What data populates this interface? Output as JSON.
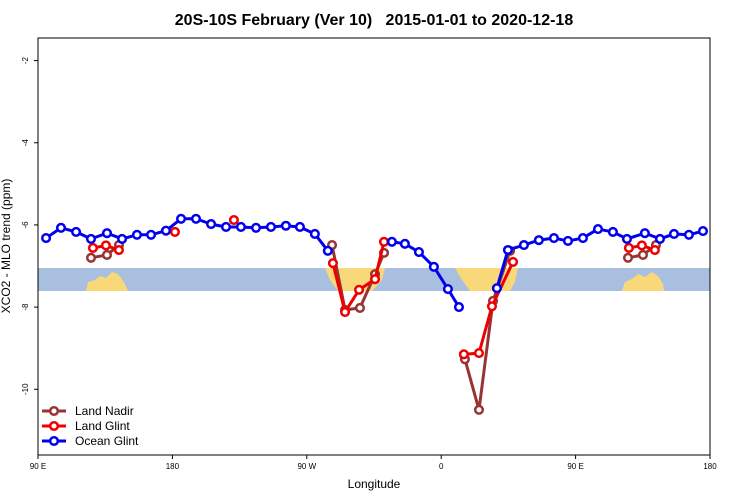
{
  "chart_data": {
    "type": "line",
    "title": "20S-10S February (Ver 10)   2015-01-01 to 2020-12-18",
    "x_label": "Longitude",
    "y_label": "XCO2 - MLO trend (ppm)",
    "xlim": [
      90,
      540
    ],
    "ylim": [
      -11.6,
      -1.45
    ],
    "xticks": [
      {
        "value": 90,
        "label": "90 E"
      },
      180,
      {
        "value": 270,
        "label": "90 W"
      },
      {
        "value": 360,
        "label": "0"
      },
      {
        "value": 450,
        "label": "90 E"
      },
      {
        "value": 540,
        "label": "180"
      }
    ],
    "yticks": [
      -10,
      -8,
      -6,
      -4,
      -2
    ],
    "legend": "bottom-left",
    "series": [
      {
        "name": "Land Nadir",
        "color": "#993333",
        "x": [
          125.5,
          136.2,
          144.2,
          null,
          286.9,
          295.6,
          305.6,
          315.7,
          321.7,
          null,
          375.9,
          385.3,
          394.7,
          406.1,
          null,
          485.1,
          495.1,
          503.8
        ],
        "values": [
          -6.8,
          -6.73,
          -6.49,
          null,
          -6.49,
          -8.07,
          -8.02,
          -7.2,
          -6.68,
          null,
          -9.27,
          -10.5,
          -7.85,
          -6.63,
          null,
          -6.8,
          -6.73,
          -6.49
        ]
      },
      {
        "name": "Land Glint",
        "color": "#ee0000",
        "x": [
          126.8,
          135.5,
          144.2,
          null,
          181.7,
          null,
          221.2,
          null,
          287.5,
          295.6,
          305.0,
          315.7,
          321.7,
          null,
          375.2,
          385.3,
          394.0,
          408.1,
          null,
          485.7,
          494.4,
          503.1
        ],
        "values": [
          -6.56,
          -6.5,
          -6.61,
          null,
          -6.17,
          null,
          -5.88,
          null,
          -6.93,
          -8.12,
          -7.58,
          -7.32,
          -6.41,
          null,
          -9.15,
          -9.12,
          -7.98,
          -6.9,
          null,
          -6.56,
          -6.5,
          -6.61
        ]
      },
      {
        "name": "Ocean Glint",
        "color": "#0000ee",
        "x": [
          95.4,
          105.4,
          115.5,
          125.5,
          136.2,
          146.3,
          156.3,
          165.7,
          175.7,
          185.8,
          195.8,
          205.9,
          215.9,
          225.9,
          236.0,
          246.0,
          256.0,
          265.4,
          275.4,
          284.1,
          null,
          327.0,
          335.7,
          345.1,
          355.1,
          364.5,
          371.9,
          null,
          397.3,
          404.7,
          415.4,
          425.4,
          435.5,
          444.9,
          454.9,
          465.0,
          475.0,
          484.4,
          496.4,
          506.5,
          515.9,
          525.9,
          535.3
        ],
        "values": [
          -6.32,
          -6.07,
          -6.17,
          -6.34,
          -6.2,
          -6.34,
          -6.24,
          -6.24,
          -6.14,
          -5.85,
          -5.85,
          -5.98,
          -6.05,
          -6.05,
          -6.07,
          -6.05,
          -6.02,
          -6.05,
          -6.22,
          -6.63,
          null,
          -6.41,
          -6.46,
          -6.66,
          -7.02,
          -7.56,
          -8.0,
          null,
          -7.54,
          -6.61,
          -6.49,
          -6.37,
          -6.32,
          -6.39,
          -6.32,
          -6.1,
          -6.17,
          -6.34,
          -6.2,
          -6.34,
          -6.22,
          -6.24,
          -6.15
        ]
      }
    ]
  }
}
